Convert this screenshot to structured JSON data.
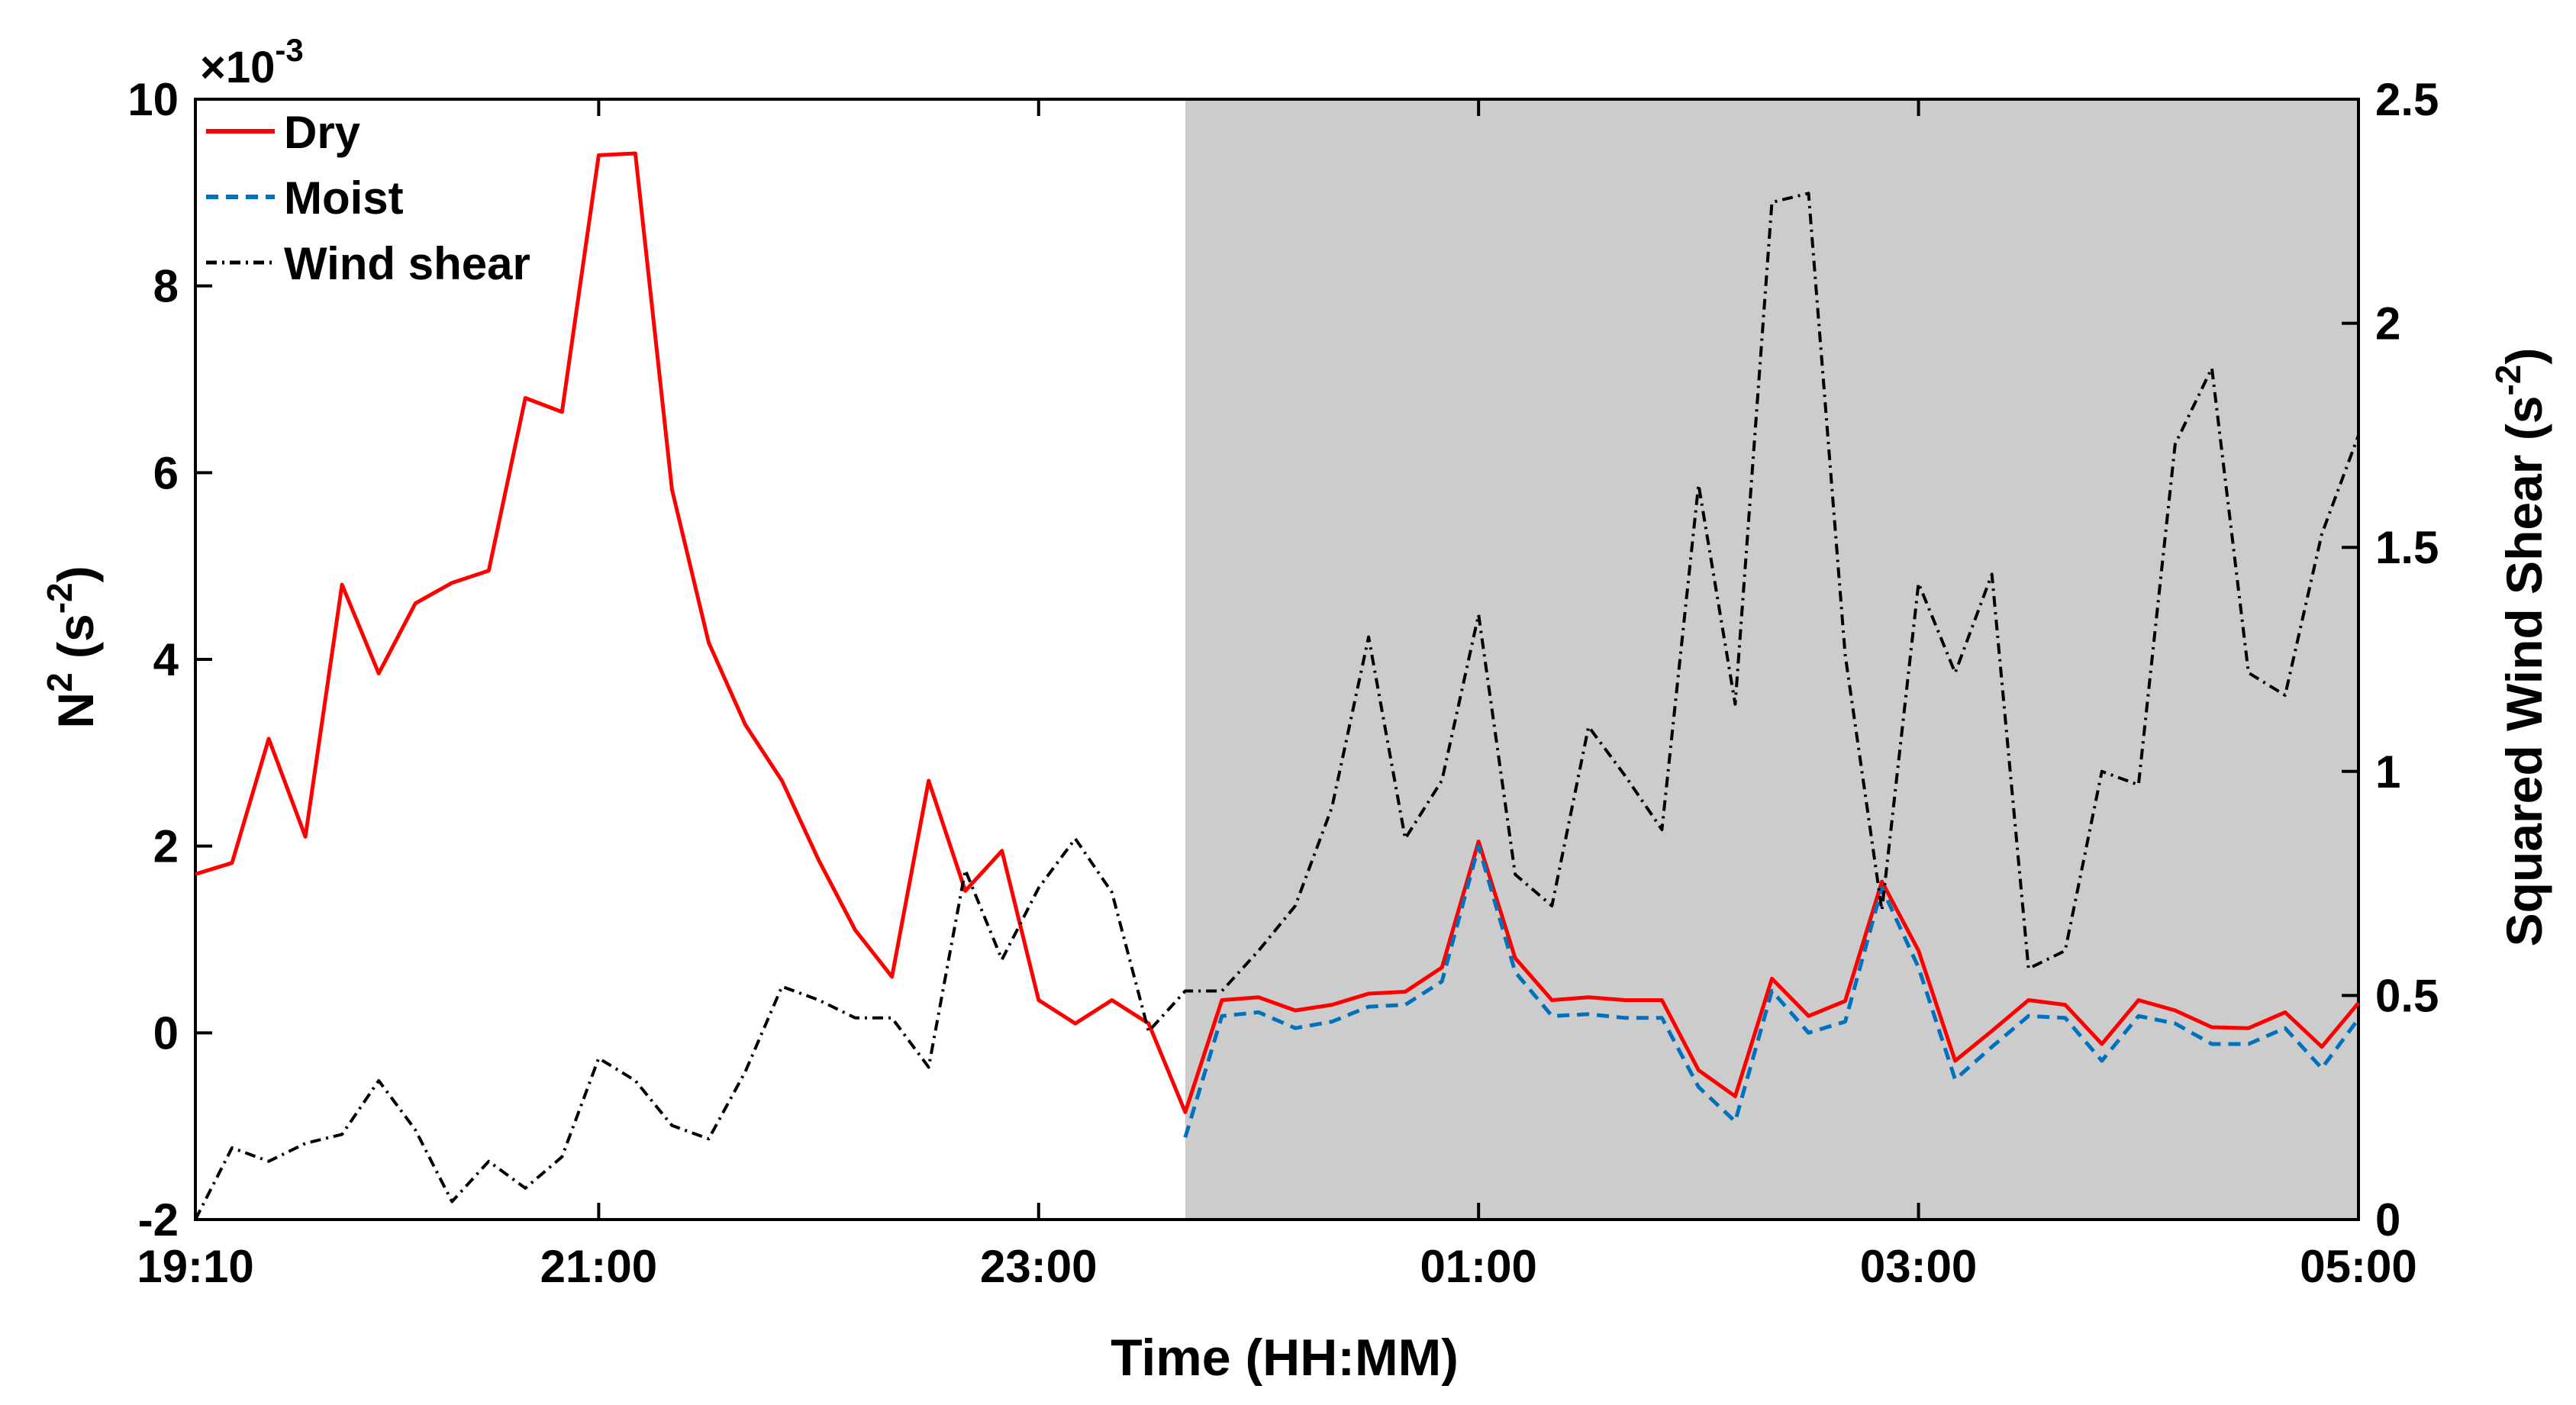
{
  "chart_data": {
    "type": "line",
    "x_axis": {
      "label": "Time (HH:MM)",
      "start": "19:10",
      "end": "05:00",
      "ticks": [
        "19:10",
        "21:00",
        "23:00",
        "01:00",
        "03:00",
        "05:00"
      ]
    },
    "y_left": {
      "label_base": "N",
      "label_sup": "2",
      "label_rest": " (s",
      "label_unit_sup": "-2",
      "label_close": ")",
      "exponent_base": "×10",
      "exponent_power": "-3",
      "ylim": [
        -2,
        10
      ],
      "ticks": [
        "-2",
        "0",
        "2",
        "4",
        "6",
        "8",
        "10"
      ]
    },
    "y_right": {
      "label_main": "Squared Wind Shear (s",
      "label_unit_sup": "-2",
      "label_close": ")",
      "ylim": [
        0,
        2.5
      ],
      "ticks": [
        "0",
        "0.5",
        "1",
        "1.5",
        "2",
        "2.5"
      ]
    },
    "shaded_region": {
      "start": "23:40",
      "end": "05:00",
      "color": "#cccccc"
    },
    "legend": {
      "position": "top-left"
    },
    "series": [
      {
        "name": "Dry",
        "axis": "left",
        "color": "#ff0000",
        "style": "solid",
        "x": [
          "19:10",
          "19:20",
          "19:30",
          "19:40",
          "19:50",
          "20:00",
          "20:10",
          "20:20",
          "20:30",
          "20:40",
          "20:50",
          "21:00",
          "21:10",
          "21:20",
          "21:30",
          "21:40",
          "21:50",
          "22:00",
          "22:10",
          "22:20",
          "22:30",
          "22:40",
          "22:50",
          "23:00",
          "23:10",
          "23:20",
          "23:30",
          "23:40",
          "23:50",
          "00:00",
          "00:10",
          "00:20",
          "00:30",
          "00:40",
          "00:50",
          "01:00",
          "01:10",
          "01:20",
          "01:30",
          "01:40",
          "01:50",
          "02:00",
          "02:10",
          "02:20",
          "02:30",
          "02:40",
          "02:50",
          "03:00",
          "03:10",
          "03:20",
          "03:30",
          "03:40",
          "03:50",
          "04:00",
          "04:10",
          "04:20",
          "04:30",
          "04:40",
          "04:50",
          "05:00"
        ],
        "values": [
          1.7,
          1.82,
          3.15,
          2.1,
          4.8,
          3.85,
          4.6,
          4.82,
          4.95,
          6.8,
          6.65,
          9.4,
          9.42,
          5.82,
          4.18,
          3.3,
          2.7,
          1.85,
          1.1,
          0.6,
          2.7,
          1.52,
          1.95,
          0.35,
          0.1,
          0.35,
          0.1,
          -0.85,
          0.35,
          0.38,
          0.24,
          0.3,
          0.42,
          0.44,
          0.7,
          2.05,
          0.8,
          0.35,
          0.38,
          0.35,
          0.35,
          -0.4,
          -0.68,
          0.58,
          0.18,
          0.34,
          1.62,
          0.88,
          -0.3,
          0.02,
          0.35,
          0.3,
          -0.12,
          0.35,
          0.24,
          0.06,
          0.05,
          0.22,
          -0.15,
          0.32
        ]
      },
      {
        "name": "Moist",
        "axis": "left",
        "color": "#0072bd",
        "style": "dashed",
        "x": [
          "23:40",
          "23:50",
          "00:00",
          "00:10",
          "00:20",
          "00:30",
          "00:40",
          "00:50",
          "01:00",
          "01:10",
          "01:20",
          "01:30",
          "01:40",
          "01:50",
          "02:00",
          "02:10",
          "02:20",
          "02:30",
          "02:40",
          "02:50",
          "03:00",
          "03:10",
          "03:20",
          "03:30",
          "03:40",
          "03:50",
          "04:00",
          "04:10",
          "04:20",
          "04:30",
          "04:40",
          "04:50",
          "05:00"
        ],
        "values": [
          -1.12,
          0.18,
          0.22,
          0.05,
          0.12,
          0.28,
          0.3,
          0.55,
          2.0,
          0.65,
          0.18,
          0.2,
          0.16,
          0.16,
          -0.58,
          -0.95,
          0.45,
          0.0,
          0.12,
          1.55,
          0.7,
          -0.5,
          -0.15,
          0.18,
          0.16,
          -0.3,
          0.18,
          0.1,
          -0.12,
          -0.12,
          0.05,
          -0.38,
          0.15
        ]
      },
      {
        "name": "Wind shear",
        "axis": "right",
        "color": "#000000",
        "style": "dashdot",
        "x": [
          "19:10",
          "19:20",
          "19:30",
          "19:40",
          "19:50",
          "20:00",
          "20:10",
          "20:20",
          "20:30",
          "20:40",
          "20:50",
          "21:00",
          "21:10",
          "21:20",
          "21:30",
          "21:40",
          "21:50",
          "22:00",
          "22:10",
          "22:20",
          "22:30",
          "22:40",
          "22:50",
          "23:00",
          "23:10",
          "23:20",
          "23:30",
          "23:40",
          "23:50",
          "00:00",
          "00:10",
          "00:20",
          "00:30",
          "00:40",
          "00:50",
          "01:00",
          "01:10",
          "01:20",
          "01:30",
          "01:40",
          "01:50",
          "02:00",
          "02:10",
          "02:20",
          "02:30",
          "02:40",
          "02:50",
          "03:00",
          "03:10",
          "03:20",
          "03:30",
          "03:40",
          "03:50",
          "04:00",
          "04:10",
          "04:20",
          "04:30",
          "04:40",
          "04:50",
          "05:00"
        ],
        "values": [
          0.0,
          0.16,
          0.13,
          0.17,
          0.19,
          0.31,
          0.2,
          0.04,
          0.13,
          0.07,
          0.14,
          0.36,
          0.31,
          0.21,
          0.18,
          0.33,
          0.52,
          0.49,
          0.45,
          0.45,
          0.34,
          0.78,
          0.58,
          0.74,
          0.85,
          0.73,
          0.42,
          0.51,
          0.51,
          0.6,
          0.7,
          0.92,
          1.3,
          0.85,
          0.98,
          1.35,
          0.77,
          0.7,
          1.1,
          0.99,
          0.87,
          1.64,
          1.15,
          2.27,
          2.29,
          1.26,
          0.69,
          1.42,
          1.22,
          1.44,
          0.56,
          0.6,
          1.0,
          0.97,
          1.73,
          1.9,
          1.22,
          1.17,
          1.53,
          1.75
        ]
      }
    ]
  }
}
